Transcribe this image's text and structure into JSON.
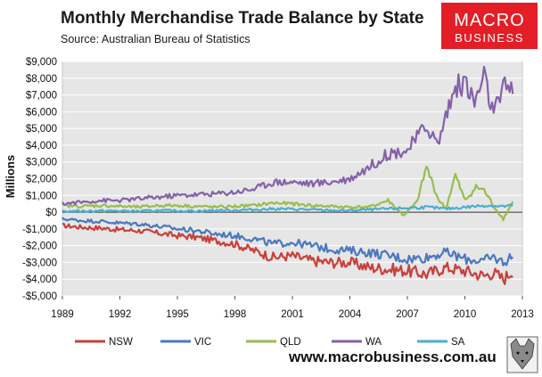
{
  "chart_data": {
    "type": "line",
    "title": "Monthly Merchandise Trade Balance by State",
    "subtitle": "Source:  Australian Bureau of Statistics",
    "ylabel": "Millions",
    "xlabel": "",
    "xlim": [
      1989,
      2013
    ],
    "ylim": [
      -5000,
      9000
    ],
    "x_ticks": [
      1989,
      1992,
      1995,
      1998,
      2001,
      2004,
      2007,
      2010,
      2013
    ],
    "y_ticks": [
      -5000,
      -4000,
      -3000,
      -2000,
      -1000,
      0,
      1000,
      2000,
      3000,
      4000,
      5000,
      6000,
      7000,
      8000,
      9000
    ],
    "y_tick_labels": [
      "-$5,000",
      "-$4,000",
      "-$3,000",
      "-$2,000",
      "-$1,000",
      "$0",
      "$1,000",
      "$2,000",
      "$3,000",
      "$4,000",
      "$5,000",
      "$6,000",
      "$7,000",
      "$8,000",
      "$9,000"
    ],
    "x_tick_labels": [
      "1989",
      "1992",
      "1995",
      "1998",
      "2001",
      "2004",
      "2007",
      "2010",
      "2013"
    ],
    "legend_position": "bottom",
    "series": [
      {
        "name": "NSW",
        "color": "#c8403b",
        "x": [
          1989,
          1990,
          1991,
          1992,
          1993,
          1994,
          1995,
          1996,
          1997,
          1998,
          1999,
          2000,
          2001,
          2002,
          2003,
          2004,
          2005,
          2006,
          2007,
          2008,
          2009,
          2010,
          2011,
          2011.5,
          2012,
          2012.5
        ],
        "values": [
          -800,
          -900,
          -950,
          -1050,
          -1100,
          -1250,
          -1400,
          -1500,
          -1700,
          -1900,
          -2300,
          -2700,
          -2600,
          -2900,
          -3000,
          -3000,
          -3300,
          -3400,
          -3500,
          -3700,
          -3300,
          -3500,
          -3800,
          -3600,
          -4000,
          -3500
        ]
      },
      {
        "name": "VIC",
        "color": "#4a78c0",
        "x": [
          1989,
          1990,
          1991,
          1992,
          1993,
          1994,
          1995,
          1996,
          1997,
          1998,
          1999,
          2000,
          2001,
          2002,
          2003,
          2004,
          2005,
          2006,
          2007,
          2008,
          2009,
          2010,
          2011,
          2011.5,
          2012,
          2012.5
        ],
        "values": [
          -400,
          -500,
          -550,
          -650,
          -700,
          -850,
          -1000,
          -1100,
          -1300,
          -1400,
          -1600,
          -1900,
          -1800,
          -2000,
          -2200,
          -2300,
          -2400,
          -2600,
          -2800,
          -2700,
          -2400,
          -2800,
          -2900,
          -2700,
          -3000,
          -2600
        ]
      },
      {
        "name": "QLD",
        "color": "#98bd4f",
        "x": [
          1989,
          1990,
          1991,
          1992,
          1993,
          1994,
          1995,
          1996,
          1997,
          1998,
          1999,
          2000,
          2001,
          2002,
          2003,
          2004,
          2005,
          2006,
          2006.8,
          2007.5,
          2008,
          2008.6,
          2009,
          2009.5,
          2010,
          2010.6,
          2011,
          2011.6,
          2012,
          2012.5
        ],
        "values": [
          400,
          350,
          400,
          350,
          300,
          400,
          400,
          350,
          300,
          350,
          400,
          550,
          500,
          400,
          350,
          300,
          300,
          700,
          -200,
          600,
          2700,
          800,
          200,
          2200,
          700,
          1500,
          1300,
          200,
          -400,
          600
        ]
      },
      {
        "name": "WA",
        "color": "#8561a9",
        "x": [
          1989,
          1990,
          1991,
          1992,
          1993,
          1994,
          1995,
          1996,
          1997,
          1998,
          1999,
          2000,
          2001,
          2002,
          2003,
          2004,
          2005,
          2006,
          2007,
          2008,
          2008.6,
          2009,
          2009.5,
          2010,
          2010.5,
          2011,
          2011.5,
          2012,
          2012.5
        ],
        "values": [
          500,
          600,
          700,
          700,
          800,
          900,
          1000,
          1050,
          1100,
          1200,
          1400,
          1800,
          1800,
          1700,
          1800,
          2000,
          2700,
          3500,
          3700,
          5200,
          4000,
          5800,
          7400,
          7800,
          6500,
          8100,
          5800,
          7300,
          7700
        ]
      },
      {
        "name": "SA",
        "color": "#4aaed1",
        "x": [
          1989,
          1990,
          1991,
          1992,
          1993,
          1994,
          1995,
          1996,
          1997,
          1998,
          1999,
          2000,
          2001,
          2002,
          2003,
          2004,
          2005,
          2006,
          2007,
          2008,
          2009,
          2010,
          2011,
          2012,
          2012.5
        ],
        "values": [
          50,
          60,
          80,
          70,
          60,
          100,
          80,
          70,
          100,
          120,
          150,
          200,
          180,
          150,
          100,
          100,
          150,
          200,
          250,
          300,
          200,
          300,
          400,
          350,
          400
        ]
      }
    ]
  },
  "branding": {
    "logo_top": "MACRO",
    "logo_bottom": "BUSINESS",
    "logo_color": "#e41e26",
    "website": "www.macrobusiness.com.au"
  }
}
